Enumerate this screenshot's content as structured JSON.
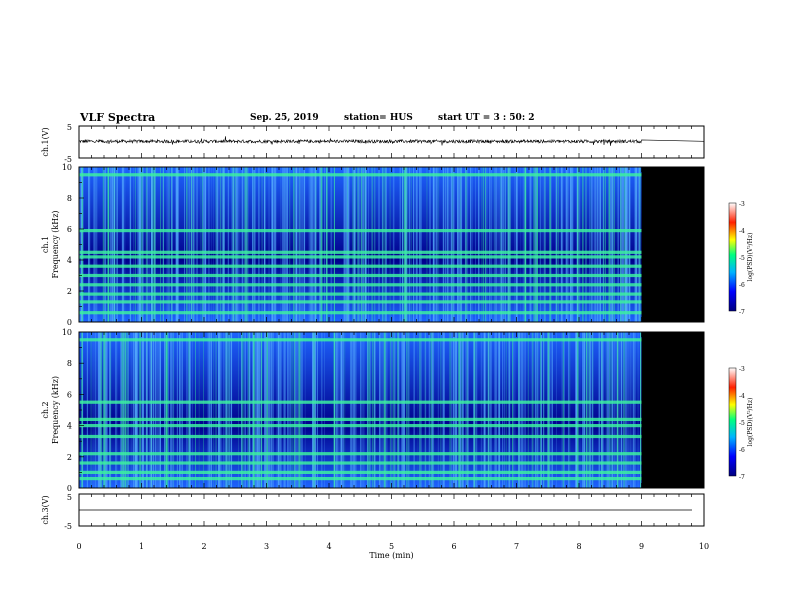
{
  "header": {
    "title": "VLF Spectra",
    "date": "Sep. 25, 2019",
    "station": "station= HUS",
    "start": "start UT =  3 : 50: 2"
  },
  "colors": {
    "background": "#ffffff",
    "ink": "#000000",
    "spec_low": "#00008c",
    "spec_mid": "#1e64ff",
    "spec_line": "#3cf0a0",
    "no_data": "#000000"
  },
  "chart_data": [
    {
      "type": "line",
      "name": "ch1-waveform",
      "ylabel": "ch.1(V)",
      "ylim": [
        -5,
        5
      ],
      "yticks": [
        "5",
        "-5"
      ],
      "xlim": [
        0,
        10
      ],
      "data_end_min": 9.0,
      "mean_value": 0.2,
      "note": "dense noise trace, flat beyond 9 min"
    },
    {
      "type": "heatmap",
      "name": "ch1-spectrogram",
      "ylabel": "ch.1 Frequency (kHz)",
      "ylim": [
        0,
        10
      ],
      "yticks": [
        "0",
        "2",
        "4",
        "6",
        "8",
        "10"
      ],
      "xlim": [
        0,
        10
      ],
      "data_end_min": 9.0,
      "intense_bands_khz": [
        9.5,
        5.9,
        4.5,
        4.2,
        3.6,
        3.0,
        2.4,
        1.8,
        1.3,
        0.6
      ],
      "colorbar": {
        "label": "log(PSD)(V²/Hz)",
        "ticks": [
          "-3",
          "-4",
          "-5",
          "-6",
          "-7"
        ],
        "range": [
          -7,
          -3
        ]
      }
    },
    {
      "type": "heatmap",
      "name": "ch2-spectrogram",
      "ylabel": "ch.2 Frequency (kHz)",
      "ylim": [
        0,
        10
      ],
      "yticks": [
        "0",
        "2",
        "4",
        "6",
        "8",
        "10"
      ],
      "xlim": [
        0,
        10
      ],
      "data_end_min": 9.0,
      "intense_bands_khz": [
        9.5,
        5.5,
        4.4,
        4.0,
        3.3,
        2.2,
        1.6,
        1.0,
        0.6
      ],
      "colorbar": {
        "label": "log(PSD)(V²/Hz)",
        "ticks": [
          "-3",
          "-4",
          "-5",
          "-6",
          "-7"
        ],
        "range": [
          -7,
          -3
        ]
      }
    },
    {
      "type": "line",
      "name": "ch3-waveform",
      "ylabel": "ch.3(V)",
      "ylim": [
        -5,
        5
      ],
      "yticks": [
        "5",
        "-5"
      ],
      "xlim": [
        0,
        10
      ],
      "constant_value": 0,
      "xlabel": "Time  (min)",
      "xticks": [
        "0",
        "1",
        "2",
        "3",
        "4",
        "5",
        "6",
        "7",
        "8",
        "9",
        "10"
      ]
    }
  ]
}
